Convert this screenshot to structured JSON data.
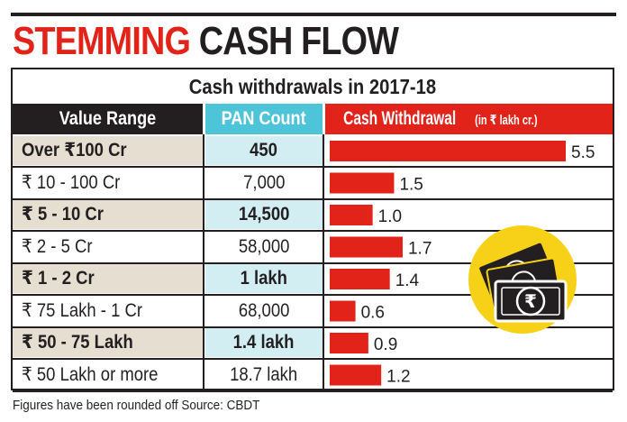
{
  "headline": {
    "part1": "STEMMING",
    "part2": "CASH FLOW"
  },
  "subtitle": "Cash withdrawals in 2017-18",
  "columns": {
    "range": "Value Range",
    "pan": "PAN Count",
    "cash": "Cash Withdrawal",
    "cash_unit": "(in ₹ lakh cr.)"
  },
  "rows": [
    {
      "range": "Over ₹100 Cr",
      "pan": "450"
    },
    {
      "range": "₹ 10 - 100 Cr",
      "pan": "7,000"
    },
    {
      "range": "₹ 5 - 10 Cr",
      "pan": "14,500"
    },
    {
      "range": "₹ 2 - 5 Cr",
      "pan": "58,000"
    },
    {
      "range": "₹ 1 - 2 Cr",
      "pan": "1 lakh"
    },
    {
      "range": "₹ 75 Lakh - 1 Cr",
      "pan": "68,000"
    },
    {
      "range": "₹ 50 - 75 Lakh",
      "pan": "1.4 lakh"
    },
    {
      "range": "₹ 50 Lakh or more",
      "pan": "18.7 lakh"
    }
  ],
  "chart_data": {
    "type": "bar",
    "orientation": "horizontal",
    "title": "Cash withdrawals in 2017-18",
    "categories": [
      "Over ₹100 Cr",
      "₹ 10 - 100 Cr",
      "₹ 5 - 10 Cr",
      "₹ 2 - 5 Cr",
      "₹ 1 - 2 Cr",
      "₹ 75 Lakh - 1 Cr",
      "₹ 50 - 75 Lakh",
      "₹ 50 Lakh or more"
    ],
    "values": [
      5.5,
      1.5,
      1.0,
      1.7,
      1.4,
      0.6,
      0.9,
      1.2
    ],
    "value_labels": [
      "5.5",
      "1.5",
      "1.0",
      "1.7",
      "1.4",
      "0.6",
      "0.9",
      "1.2"
    ],
    "xlim": [
      0,
      5.5
    ],
    "bar_color": "#e2231a",
    "grid": false,
    "legend": "none"
  },
  "footnote": "Figures have been rounded off  Source: CBDT",
  "icon": "rupee-notes-icon",
  "colors": {
    "red": "#e2231a",
    "dark": "#231f20",
    "cyan": "#4dc4d8",
    "beige": "#e5ded1",
    "lightcyan": "#d2eef3",
    "yellow": "#f7d117"
  }
}
